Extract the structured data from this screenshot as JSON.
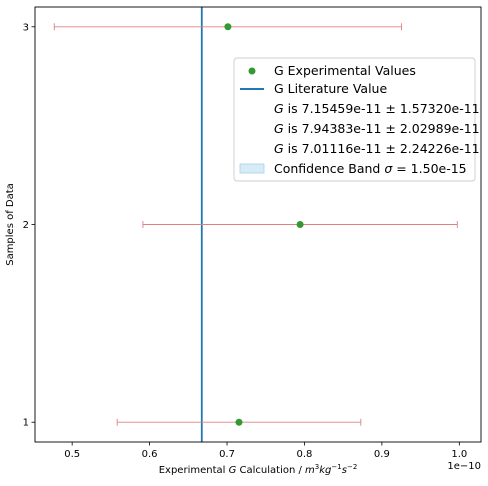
{
  "chart_data": {
    "type": "scatter",
    "orientation": "horizontal-errorbars",
    "xlabel_prefix": "Experimental ",
    "xlabel_symbol": "G",
    "xlabel_mid": " Calculation / ",
    "xlabel_units": {
      "m": "m",
      "m_exp": "3",
      "kg": "kg",
      "kg_exp": "−1",
      "s": "s",
      "s_exp": "−2"
    },
    "ylabel": "Samples of Data",
    "x_offset_label": "1e−10",
    "xlim": [
      4.52e-11,
      1.028e-10
    ],
    "ylim": [
      0.9,
      3.1
    ],
    "x_ticks": [
      5e-11,
      6e-11,
      7e-11,
      8e-11,
      9e-11,
      1e-10
    ],
    "x_tick_labels": [
      "0.5",
      "0.6",
      "0.7",
      "0.8",
      "0.9",
      "1.0"
    ],
    "y_ticks": [
      1,
      2,
      3
    ],
    "y_tick_labels": [
      "1",
      "2",
      "3"
    ],
    "grid": false,
    "legend_position": "right",
    "literature_value": 6.674e-11,
    "series": [
      {
        "name": "G Experimental Values",
        "points": [
          {
            "x": 7.15459e-11,
            "y": 1,
            "xerr": 1.5732e-11
          },
          {
            "x": 7.94383e-11,
            "y": 2,
            "xerr": 2.02989e-11
          },
          {
            "x": 7.01116e-11,
            "y": 3,
            "xerr": 2.24226e-11
          }
        ]
      }
    ],
    "legend": {
      "experimental": "G Experimental Values",
      "literature": "G Literature Value",
      "g_entries": [
        {
          "sym": "G",
          "rest": " is 7.15459e-11 ± 1.57320e-11"
        },
        {
          "sym": "G",
          "rest": " is 7.94383e-11 ± 2.02989e-11"
        },
        {
          "sym": "G",
          "rest": " is 7.01116e-11 ± 2.24226e-11"
        }
      ],
      "band_prefix": "Confidence Band ",
      "band_sigma": "σ",
      "band_suffix": " = 1.50e-15"
    },
    "colors": {
      "point": "#339933",
      "errorbar": "#e08080",
      "literature_line": "#1f77b4",
      "band_fill": "#d8ecf8",
      "band_edge": "#a9cfe8",
      "legend_border": "#cccccc"
    }
  }
}
